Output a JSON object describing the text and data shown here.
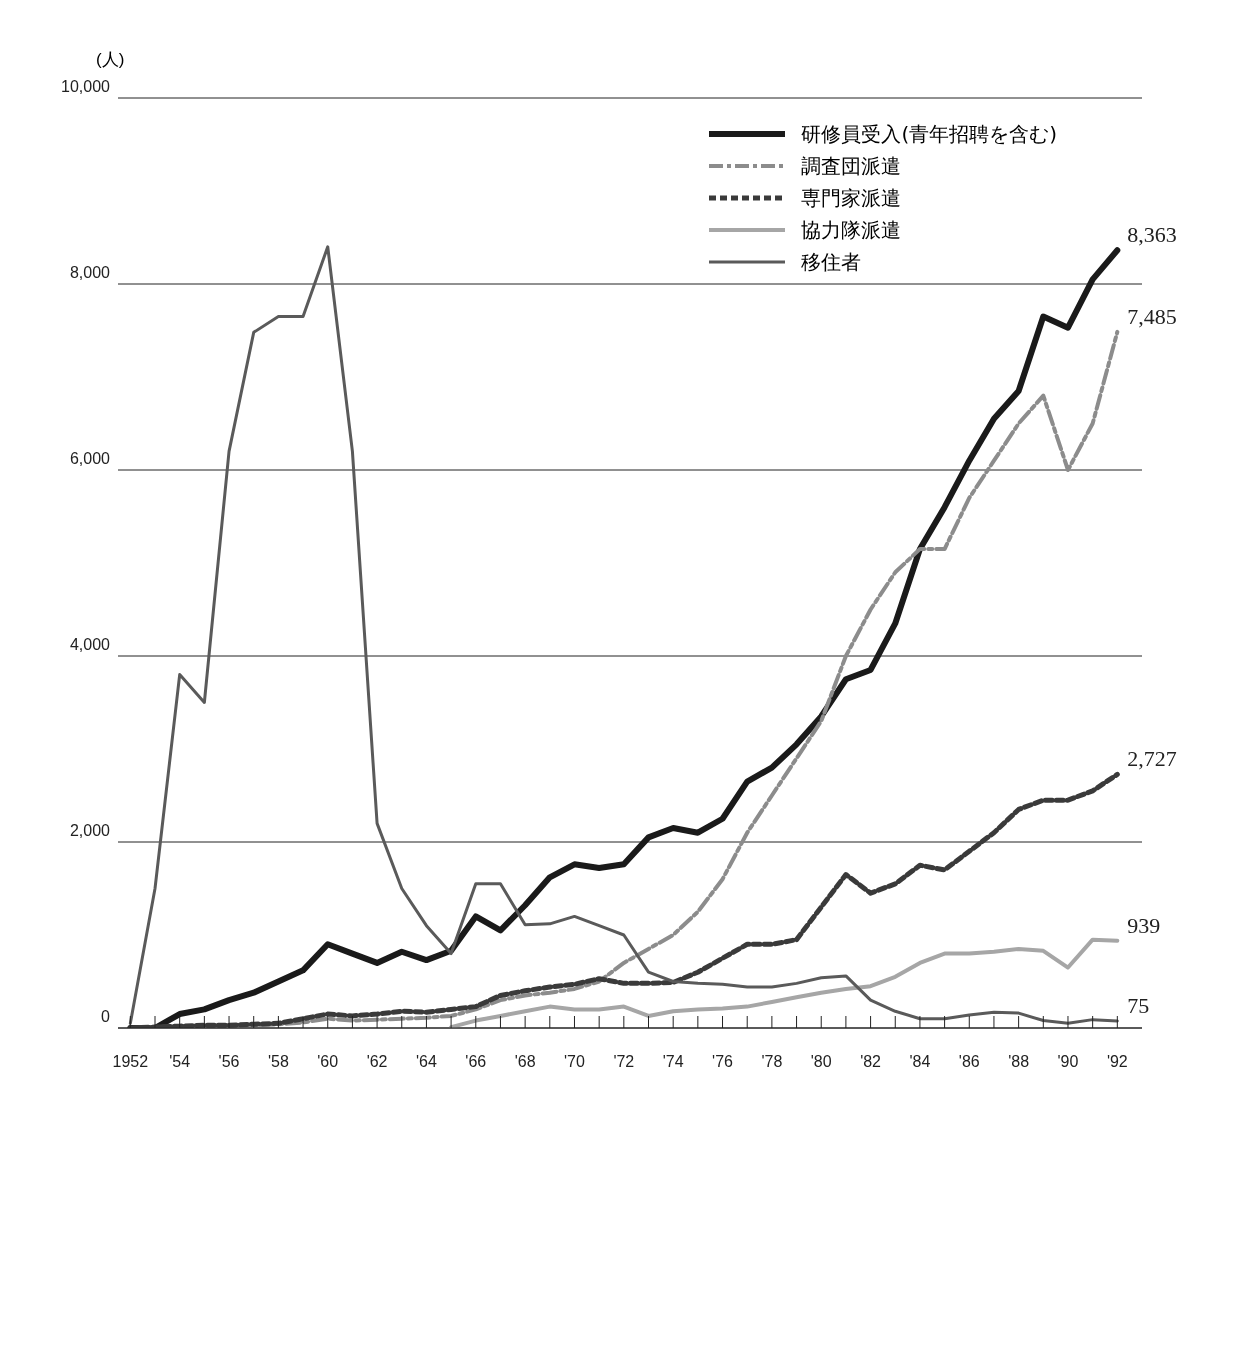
{
  "chart_data": {
    "type": "line",
    "ylabel": "(人)",
    "x": [
      1952,
      1953,
      1954,
      1955,
      1956,
      1957,
      1958,
      1959,
      1960,
      1961,
      1962,
      1963,
      1964,
      1965,
      1966,
      1967,
      1968,
      1969,
      1970,
      1971,
      1972,
      1973,
      1974,
      1975,
      1976,
      1977,
      1978,
      1979,
      1980,
      1981,
      1982,
      1983,
      1984,
      1985,
      1986,
      1987,
      1988,
      1989,
      1990,
      1991,
      1992
    ],
    "series": [
      {
        "name": "研修員受入(青年招聘を含む)",
        "color": "#1a1a1a",
        "line_style": "solid",
        "values": [
          0,
          0,
          150,
          200,
          300,
          380,
          500,
          620,
          900,
          800,
          700,
          820,
          730,
          830,
          1200,
          1050,
          1320,
          1620,
          1760,
          1720,
          1760,
          2050,
          2150,
          2100,
          2250,
          2650,
          2800,
          3050,
          3350,
          3750,
          3850,
          4350,
          5150,
          5600,
          6100,
          6550,
          6850,
          7650,
          7530,
          8050,
          8363
        ],
        "value_labels": [
          null,
          null,
          null,
          null,
          null,
          null,
          null,
          null,
          null,
          null,
          null,
          null,
          null,
          null,
          null,
          null,
          null,
          null,
          null,
          null,
          null,
          null,
          null,
          null,
          null,
          null,
          null,
          null,
          null,
          null,
          null,
          null,
          null,
          null,
          null,
          null,
          null,
          null,
          null,
          null,
          "8,363"
        ]
      },
      {
        "name": "調査団派遣",
        "color": "#8c8c8c",
        "line_style": "dashed",
        "values": [
          0,
          10,
          20,
          20,
          30,
          30,
          40,
          60,
          100,
          80,
          90,
          100,
          110,
          130,
          200,
          300,
          350,
          380,
          420,
          500,
          700,
          850,
          1000,
          1250,
          1600,
          2100,
          2500,
          2900,
          3300,
          4000,
          4500,
          4900,
          5150,
          5150,
          5700,
          6100,
          6500,
          6800,
          6000,
          6500,
          7485
        ],
        "value_labels": [
          null,
          null,
          null,
          null,
          null,
          null,
          null,
          null,
          null,
          null,
          null,
          null,
          null,
          null,
          null,
          null,
          null,
          null,
          null,
          null,
          null,
          null,
          null,
          null,
          null,
          null,
          null,
          null,
          null,
          null,
          null,
          null,
          null,
          null,
          null,
          null,
          null,
          null,
          null,
          null,
          "7,485"
        ]
      },
      {
        "name": "専門家派遣",
        "color": "#3a3a3a",
        "line_style": "dotted",
        "values": [
          0,
          10,
          20,
          30,
          30,
          40,
          50,
          100,
          150,
          130,
          150,
          180,
          170,
          200,
          230,
          350,
          400,
          440,
          470,
          530,
          480,
          480,
          490,
          600,
          750,
          900,
          900,
          950,
          1300,
          1650,
          1450,
          1550,
          1750,
          1700,
          1900,
          2100,
          2350,
          2450,
          2450,
          2550,
          2727
        ],
        "value_labels": [
          null,
          null,
          null,
          null,
          null,
          null,
          null,
          null,
          null,
          null,
          null,
          null,
          null,
          null,
          null,
          null,
          null,
          null,
          null,
          null,
          null,
          null,
          null,
          null,
          null,
          null,
          null,
          null,
          null,
          null,
          null,
          null,
          null,
          null,
          null,
          null,
          null,
          null,
          null,
          null,
          "2,727"
        ]
      },
      {
        "name": "協力隊派遣",
        "color": "#a6a6a6",
        "line_style": "solid",
        "values": [
          null,
          null,
          null,
          null,
          null,
          null,
          null,
          null,
          null,
          null,
          null,
          null,
          null,
          10,
          80,
          130,
          180,
          230,
          200,
          200,
          230,
          130,
          180,
          200,
          210,
          230,
          280,
          330,
          380,
          420,
          450,
          550,
          700,
          800,
          800,
          820,
          850,
          830,
          650,
          950,
          939
        ],
        "value_labels": [
          null,
          null,
          null,
          null,
          null,
          null,
          null,
          null,
          null,
          null,
          null,
          null,
          null,
          null,
          null,
          null,
          null,
          null,
          null,
          null,
          null,
          null,
          null,
          null,
          null,
          null,
          null,
          null,
          null,
          null,
          null,
          null,
          null,
          null,
          null,
          null,
          null,
          null,
          null,
          null,
          "939"
        ]
      },
      {
        "name": "移住者",
        "color": "#5a5a5a",
        "line_style": "solid",
        "values": [
          50,
          1500,
          3800,
          3500,
          6200,
          7480,
          7650,
          7650,
          8400,
          6200,
          2200,
          1500,
          1100,
          800,
          1550,
          1550,
          1110,
          1120,
          1200,
          1100,
          1000,
          600,
          500,
          480,
          470,
          440,
          440,
          480,
          540,
          560,
          300,
          180,
          100,
          100,
          140,
          170,
          160,
          80,
          50,
          90,
          75
        ],
        "value_labels": [
          null,
          null,
          null,
          null,
          null,
          null,
          null,
          null,
          null,
          null,
          null,
          null,
          null,
          null,
          null,
          null,
          null,
          null,
          null,
          null,
          null,
          null,
          null,
          null,
          null,
          null,
          null,
          null,
          null,
          null,
          null,
          null,
          null,
          null,
          null,
          null,
          null,
          null,
          null,
          null,
          "75"
        ]
      }
    ],
    "xlim": [
      1951.5,
      1993
    ],
    "xticks": [
      {
        "value": 1952,
        "label": "1952"
      },
      {
        "value": 1953,
        "label": null
      },
      {
        "value": 1954,
        "label": "'54"
      },
      {
        "value": 1955,
        "label": null
      },
      {
        "value": 1956,
        "label": "'56"
      },
      {
        "value": 1957,
        "label": null
      },
      {
        "value": 1958,
        "label": "'58"
      },
      {
        "value": 1959,
        "label": null
      },
      {
        "value": 1960,
        "label": "'60"
      },
      {
        "value": 1961,
        "label": null
      },
      {
        "value": 1962,
        "label": "'62"
      },
      {
        "value": 1963,
        "label": null
      },
      {
        "value": 1964,
        "label": "'64"
      },
      {
        "value": 1965,
        "label": null
      },
      {
        "value": 1966,
        "label": "'66"
      },
      {
        "value": 1967,
        "label": null
      },
      {
        "value": 1968,
        "label": "'68"
      },
      {
        "value": 1969,
        "label": null
      },
      {
        "value": 1970,
        "label": "'70"
      },
      {
        "value": 1971,
        "label": null
      },
      {
        "value": 1972,
        "label": "'72"
      },
      {
        "value": 1973,
        "label": null
      },
      {
        "value": 1974,
        "label": "'74"
      },
      {
        "value": 1975,
        "label": null
      },
      {
        "value": 1976,
        "label": "'76"
      },
      {
        "value": 1977,
        "label": null
      },
      {
        "value": 1978,
        "label": "'78"
      },
      {
        "value": 1979,
        "label": null
      },
      {
        "value": 1980,
        "label": "'80"
      },
      {
        "value": 1981,
        "label": null
      },
      {
        "value": 1982,
        "label": "'82"
      },
      {
        "value": 1983,
        "label": null
      },
      {
        "value": 1984,
        "label": "'84"
      },
      {
        "value": 1985,
        "label": null
      },
      {
        "value": 1986,
        "label": "'86"
      },
      {
        "value": 1987,
        "label": null
      },
      {
        "value": 1988,
        "label": "'88"
      },
      {
        "value": 1989,
        "label": null
      },
      {
        "value": 1990,
        "label": "'90"
      },
      {
        "value": 1991,
        "label": null
      },
      {
        "value": 1992,
        "label": "'92"
      }
    ],
    "ylim": [
      0,
      10000
    ],
    "yticks": [
      {
        "value": 0,
        "label": "0"
      },
      {
        "value": 2000,
        "label": "2,000"
      },
      {
        "value": 4000,
        "label": "4,000"
      },
      {
        "value": 6000,
        "label": "6,000"
      },
      {
        "value": 8000,
        "label": "8,000"
      },
      {
        "value": 10000,
        "label": "10,000"
      }
    ],
    "grid": "y",
    "legend": "top right",
    "marker": "none"
  }
}
